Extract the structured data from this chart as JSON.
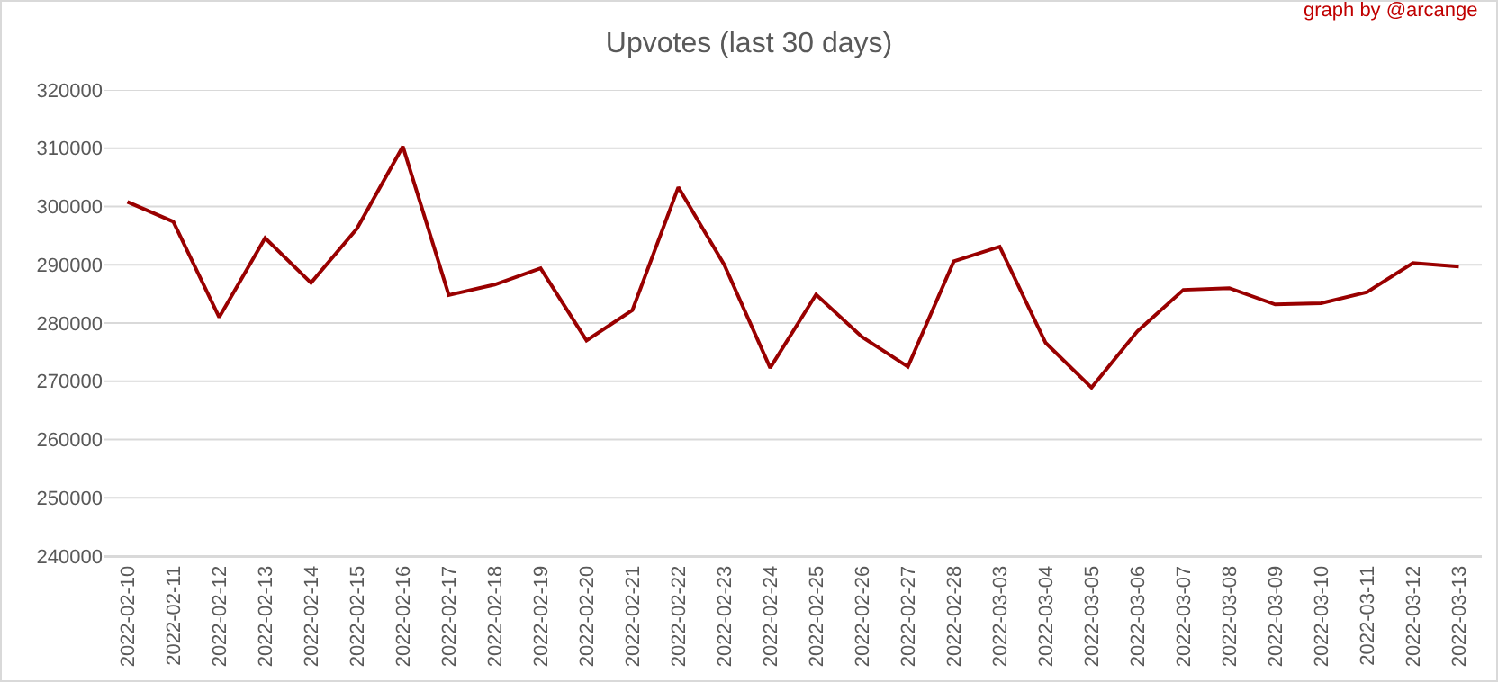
{
  "chart_data": {
    "type": "line",
    "title": "Upvotes (last 30 days)",
    "annotations": [
      "graph by @arcange"
    ],
    "categories": [
      "2022-02-10",
      "2022-02-11",
      "2022-02-12",
      "2022-02-13",
      "2022-02-14",
      "2022-02-15",
      "2022-02-16",
      "2022-02-17",
      "2022-02-18",
      "2022-02-19",
      "2022-02-20",
      "2022-02-21",
      "2022-02-22",
      "2022-02-23",
      "2022-02-24",
      "2022-02-25",
      "2022-02-26",
      "2022-02-27",
      "2022-02-28",
      "2022-03-03",
      "2022-03-04",
      "2022-03-05",
      "2022-03-06",
      "2022-03-07",
      "2022-03-08",
      "2022-03-09",
      "2022-03-10",
      "2022-03-11",
      "2022-03-12",
      "2022-03-13"
    ],
    "series": [
      {
        "color": "#990000",
        "values": [
          300800,
          297400,
          281000,
          294600,
          286900,
          296200,
          310300,
          284800,
          286600,
          289400,
          277000,
          282200,
          303300,
          290000,
          272300,
          284900,
          277600,
          272500,
          290600,
          293100,
          276600,
          268900,
          278600,
          285700,
          286000,
          283200,
          283400,
          285300,
          290300,
          289700
        ]
      }
    ],
    "ylim": [
      240000,
      320000
    ],
    "yticks": [
      240000,
      250000,
      260000,
      270000,
      280000,
      290000,
      300000,
      310000,
      320000
    ],
    "grid": "y",
    "marker": "none",
    "line_style": "solid"
  }
}
